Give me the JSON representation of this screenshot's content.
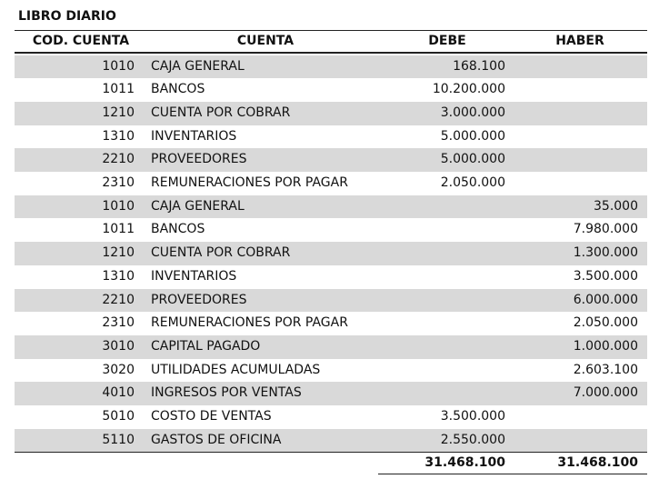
{
  "title": "LIBRO DIARIO",
  "table": {
    "headers": [
      "COD. CUENTA",
      "CUENTA",
      "DEBE",
      "HABER"
    ],
    "rows": [
      [
        "1010",
        "CAJA GENERAL",
        "168.100",
        null
      ],
      [
        "1011",
        "BANCOS",
        "10.200.000",
        null
      ],
      [
        "1210",
        "CUENTA POR COBRAR",
        "3.000.000",
        null
      ],
      [
        "1310",
        "INVENTARIOS",
        "5.000.000",
        null
      ],
      [
        "2210",
        "PROVEEDORES",
        "5.000.000",
        null
      ],
      [
        "2310",
        "REMUNERACIONES POR PAGAR",
        "2.050.000",
        null
      ],
      [
        "1010",
        "CAJA GENERAL",
        null,
        "35.000"
      ],
      [
        "1011",
        "BANCOS",
        null,
        "7.980.000"
      ],
      [
        "1210",
        "CUENTA POR COBRAR",
        null,
        "1.300.000"
      ],
      [
        "1310",
        "INVENTARIOS",
        null,
        "3.500.000"
      ],
      [
        "2210",
        "PROVEEDORES",
        null,
        "6.000.000"
      ],
      [
        "2310",
        "REMUNERACIONES POR PAGAR",
        null,
        "2.050.000"
      ],
      [
        "3010",
        "CAPITAL PAGADO",
        null,
        "1.000.000"
      ],
      [
        "3020",
        "UTILIDADES ACUMULADAS",
        null,
        "2.603.100"
      ],
      [
        "4010",
        "INGRESOS POR VENTAS",
        null,
        "7.000.000"
      ],
      [
        "5010",
        "COSTO DE VENTAS",
        "3.500.000",
        null
      ],
      [
        "5110",
        "GASTOS DE OFICINA",
        "2.550.000",
        null
      ]
    ],
    "totals": {
      "debe": "31.468.100",
      "haber": "31.468.100"
    }
  }
}
